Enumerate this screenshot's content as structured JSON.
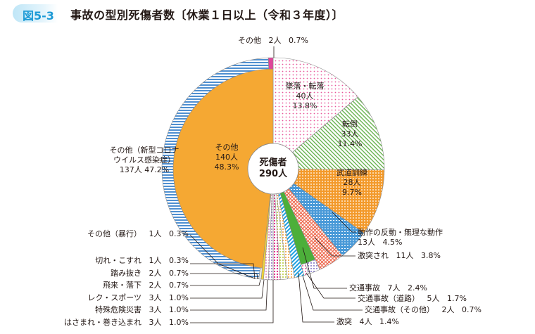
{
  "header": {
    "figure_no": "図5-3",
    "title": "事故の型別死傷者数〔休業１日以上（令和３年度）〕"
  },
  "chart_data": {
    "type": "pie",
    "center_label": {
      "line1": "死傷者",
      "line2": "290人"
    },
    "total": 290,
    "slices": [
      {
        "label": "墜落・転落",
        "count": 40,
        "count_text": "40人",
        "percent": "13.8%",
        "color": "#e8559a"
      },
      {
        "label": "転倒",
        "count": 33,
        "count_text": "33人",
        "percent": "11.4%",
        "color": "#5fae45"
      },
      {
        "label": "武道訓練",
        "count": 28,
        "count_text": "28人",
        "percent": "9.7%",
        "color": "#f39a2b"
      },
      {
        "label": "動作の反動・無理な動作",
        "count": 13,
        "count_text": "13人",
        "percent": "4.5%",
        "color": "#4a9ad8"
      },
      {
        "label": "激突され",
        "count": 11,
        "count_text": "11人",
        "percent": "3.8%",
        "color": "#ee6a4f"
      },
      {
        "label": "交通事故",
        "count": 7,
        "count_text": "7人",
        "percent": "2.4%",
        "color": "#4caf3a",
        "breakdown": [
          {
            "label": "交通事故（道路）",
            "count": 5,
            "count_text": "5人",
            "percent": "1.7%",
            "color": "#7b6fc4"
          },
          {
            "label": "交通事故（その他）",
            "count": 2,
            "count_text": "2人",
            "percent": "0.7%",
            "color": "#e8559a"
          }
        ]
      },
      {
        "label": "激突",
        "count": 4,
        "count_text": "4人",
        "percent": "1.4%",
        "color": "#1ea0e0"
      },
      {
        "label": "はさまれ・巻き込まれ",
        "count": 3,
        "count_text": "3人",
        "percent": "1.0%",
        "color": "#f39a2b"
      },
      {
        "label": "特殊危険災害",
        "count": 3,
        "count_text": "3人",
        "percent": "1.0%",
        "color": "#b5c936"
      },
      {
        "label": "レク・スポーツ",
        "count": 3,
        "count_text": "3人",
        "percent": "1.0%",
        "color": "#e0358c"
      },
      {
        "label": "飛来・落下",
        "count": 2,
        "count_text": "2人",
        "percent": "0.7%",
        "color": "#8e6cc0"
      },
      {
        "label": "踏み抜き",
        "count": 2,
        "count_text": "2人",
        "percent": "0.7%",
        "color": "#e58ab5"
      },
      {
        "label": "切れ・こすれ",
        "count": 1,
        "count_text": "1人",
        "percent": "0.3%",
        "color": "#f2d43a"
      },
      {
        "label": "その他",
        "count": 140,
        "count_text": "140人",
        "percent": "48.3%",
        "color": "#f5a833",
        "breakdown": [
          {
            "label": "その他（暴行）",
            "count": 1,
            "count_text": "1人",
            "percent": "0.3%",
            "color": "#c8c8c8"
          },
          {
            "label_lines": [
              "その他（新型コロナ",
              "ウイルス感染症）"
            ],
            "count": 137,
            "count_text": "137人",
            "percent": "47.2%",
            "color": "#4f8fd0"
          },
          {
            "label": "その他",
            "count": 2,
            "count_text": "2人",
            "percent": "0.7%",
            "color": "#e0449a"
          }
        ]
      }
    ]
  }
}
